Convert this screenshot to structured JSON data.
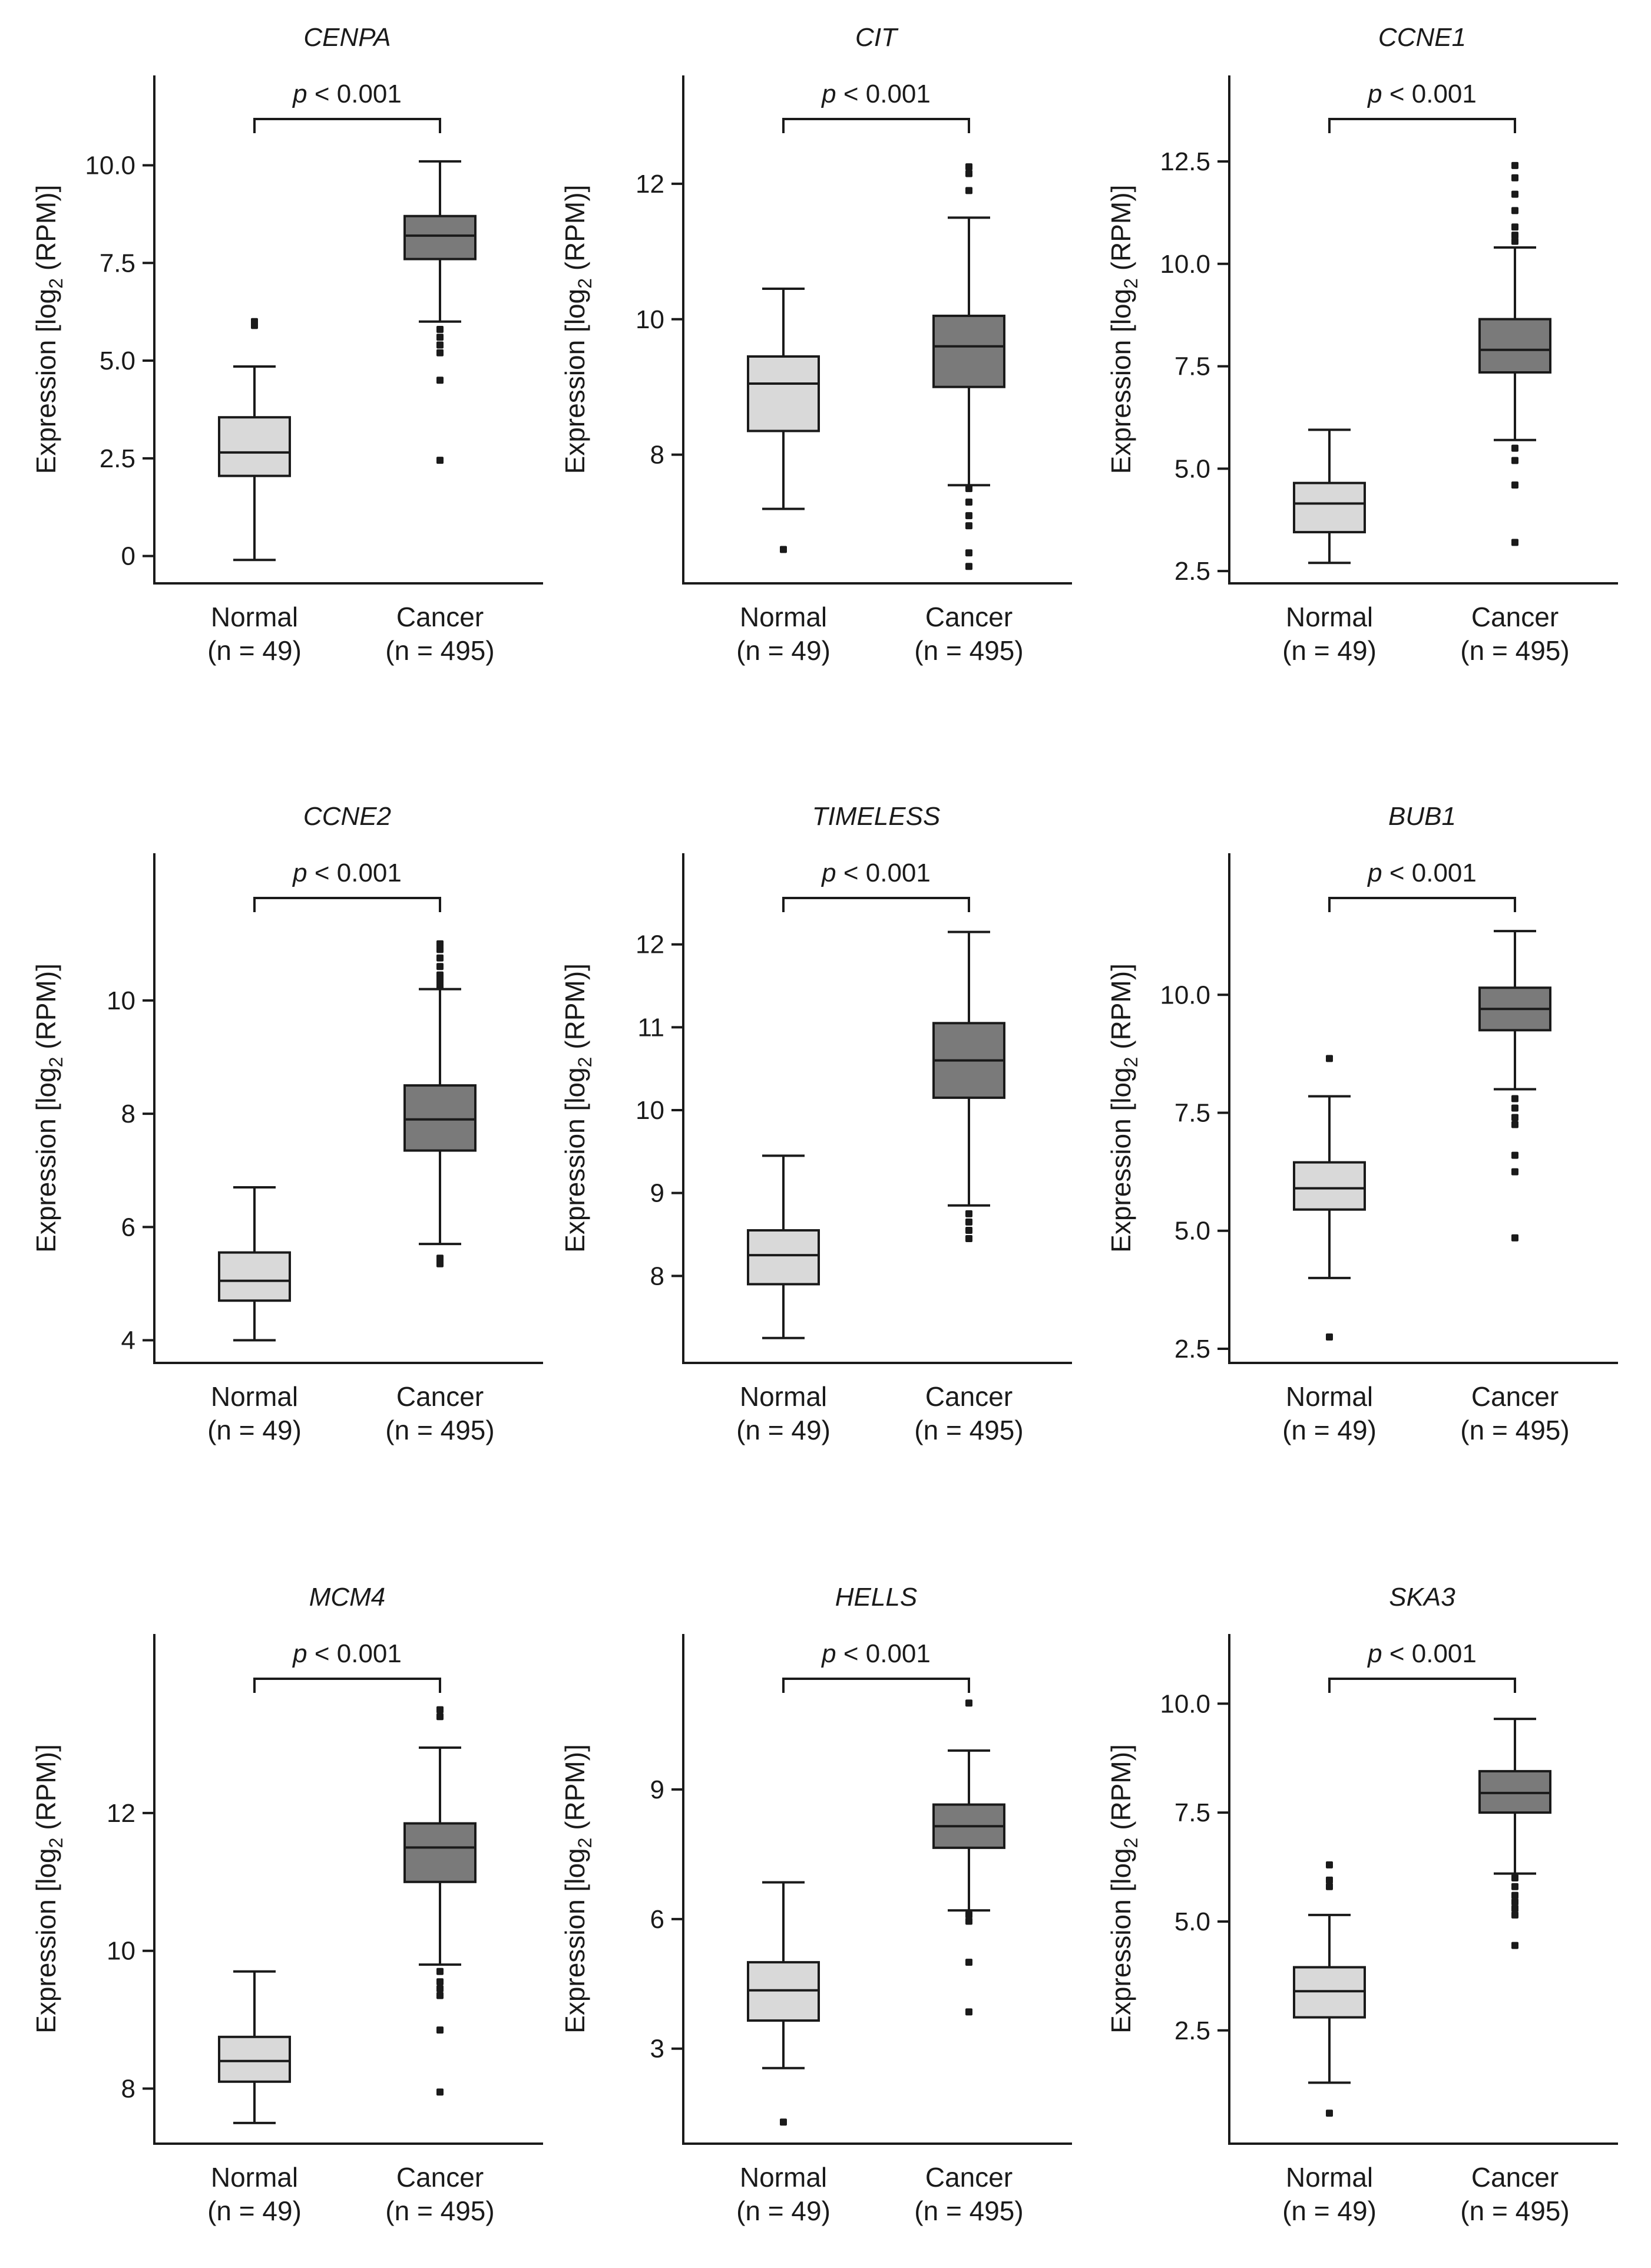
{
  "figure": {
    "y_axis_label": "Expression [log2 (RPM)]",
    "y_axis_label_parts": {
      "prefix": "Expression [log",
      "subscript": "2",
      "suffix": " (RPM)]"
    },
    "colors": {
      "normal_box": "#d9d9d9",
      "cancer_box": "#7a7a7a",
      "line": "#1a1a1a"
    }
  },
  "chart_data": [
    {
      "type": "box",
      "title": "CENPA",
      "pvalue": {
        "symbol": "p",
        "text": " < 0.001"
      },
      "ylabel": "Expression [log2 (RPM)]",
      "ylim": [
        -0.7,
        12.3
      ],
      "yticks": [
        0,
        2.5,
        5.0,
        7.5,
        10.0
      ],
      "ytick_labels": [
        "0",
        "2.5",
        "5.0",
        "7.5",
        "10.0"
      ],
      "groups": [
        {
          "name": "Normal",
          "n_label": "(n = 49)",
          "whisker_low": -0.1,
          "q1": 2.05,
          "median": 2.65,
          "q3": 3.55,
          "whisker_high": 4.85,
          "outliers": [
            5.9,
            6.0
          ]
        },
        {
          "name": "Cancer",
          "n_label": "(n = 495)",
          "whisker_low": 6.0,
          "q1": 7.6,
          "median": 8.2,
          "q3": 8.7,
          "whisker_high": 10.1,
          "outliers": [
            5.8,
            5.6,
            5.4,
            5.2,
            4.5,
            2.45
          ]
        }
      ]
    },
    {
      "type": "box",
      "title": "CIT",
      "pvalue": {
        "symbol": "p",
        "text": " < 0.001"
      },
      "ylabel": "Expression [log2 (RPM)]",
      "ylim": [
        6.1,
        13.6
      ],
      "yticks": [
        8,
        10,
        12
      ],
      "ytick_labels": [
        "8",
        "10",
        "12"
      ],
      "groups": [
        {
          "name": "Normal",
          "n_label": "(n = 49)",
          "whisker_low": 7.2,
          "q1": 8.35,
          "median": 9.05,
          "q3": 9.45,
          "whisker_high": 10.45,
          "outliers": [
            6.6
          ]
        },
        {
          "name": "Cancer",
          "n_label": "(n = 495)",
          "whisker_low": 7.55,
          "q1": 9.0,
          "median": 9.6,
          "q3": 10.05,
          "whisker_high": 11.5,
          "outliers": [
            12.25,
            12.15,
            11.9,
            7.5,
            7.3,
            7.1,
            6.95,
            6.55,
            6.35
          ]
        }
      ]
    },
    {
      "type": "box",
      "title": "CCNE1",
      "pvalue": {
        "symbol": "p",
        "text": " < 0.001"
      },
      "ylabel": "Expression [log2 (RPM)]",
      "ylim": [
        2.2,
        14.6
      ],
      "yticks": [
        2.5,
        5.0,
        7.5,
        10.0,
        12.5
      ],
      "ytick_labels": [
        "2.5",
        "5.0",
        "7.5",
        "10.0",
        "12.5"
      ],
      "groups": [
        {
          "name": "Normal",
          "n_label": "(n = 49)",
          "whisker_low": 2.7,
          "q1": 3.45,
          "median": 4.15,
          "q3": 4.65,
          "whisker_high": 5.95,
          "outliers": []
        },
        {
          "name": "Cancer",
          "n_label": "(n = 495)",
          "whisker_low": 5.7,
          "q1": 7.35,
          "median": 7.9,
          "q3": 8.65,
          "whisker_high": 10.4,
          "outliers": [
            12.4,
            12.1,
            11.7,
            11.3,
            10.9,
            10.7,
            10.55,
            5.5,
            5.2,
            4.6,
            3.2
          ]
        }
      ]
    },
    {
      "type": "box",
      "title": "CCNE2",
      "pvalue": {
        "symbol": "p",
        "text": " < 0.001"
      },
      "ylabel": "Expression [log2 (RPM)]",
      "ylim": [
        3.6,
        12.6
      ],
      "yticks": [
        4,
        6,
        8,
        10
      ],
      "ytick_labels": [
        "4",
        "6",
        "8",
        "10"
      ],
      "groups": [
        {
          "name": "Normal",
          "n_label": "(n = 49)",
          "whisker_low": 4.0,
          "q1": 4.7,
          "median": 5.05,
          "q3": 5.55,
          "whisker_high": 6.7,
          "outliers": []
        },
        {
          "name": "Cancer",
          "n_label": "(n = 495)",
          "whisker_low": 5.7,
          "q1": 7.35,
          "median": 7.9,
          "q3": 8.5,
          "whisker_high": 10.2,
          "outliers": [
            11.0,
            10.9,
            10.75,
            10.6,
            10.45,
            10.35,
            10.25,
            5.45,
            5.35
          ]
        }
      ]
    },
    {
      "type": "box",
      "title": "TIMELESS",
      "pvalue": {
        "symbol": "p",
        "text": " < 0.001"
      },
      "ylabel": "Expression [log2 (RPM)]",
      "ylim": [
        6.95,
        13.1
      ],
      "yticks": [
        8,
        9,
        10,
        11,
        12
      ],
      "ytick_labels": [
        "8",
        "9",
        "10",
        "11",
        "12"
      ],
      "groups": [
        {
          "name": "Normal",
          "n_label": "(n = 49)",
          "whisker_low": 7.25,
          "q1": 7.9,
          "median": 8.25,
          "q3": 8.55,
          "whisker_high": 9.45,
          "outliers": []
        },
        {
          "name": "Cancer",
          "n_label": "(n = 495)",
          "whisker_low": 8.85,
          "q1": 10.15,
          "median": 10.6,
          "q3": 11.05,
          "whisker_high": 12.15,
          "outliers": [
            8.75,
            8.65,
            8.55,
            8.45
          ]
        }
      ]
    },
    {
      "type": "box",
      "title": "BUB1",
      "pvalue": {
        "symbol": "p",
        "text": " < 0.001"
      },
      "ylabel": "Expression [log2 (RPM)]",
      "ylim": [
        2.2,
        13.0
      ],
      "yticks": [
        2.5,
        5.0,
        7.5,
        10.0
      ],
      "ytick_labels": [
        "2.5",
        "5.0",
        "7.5",
        "10.0"
      ],
      "groups": [
        {
          "name": "Normal",
          "n_label": "(n = 49)",
          "whisker_low": 4.0,
          "q1": 5.45,
          "median": 5.9,
          "q3": 6.45,
          "whisker_high": 7.85,
          "outliers": [
            8.65,
            2.75
          ]
        },
        {
          "name": "Cancer",
          "n_label": "(n = 495)",
          "whisker_low": 8.0,
          "q1": 9.25,
          "median": 9.7,
          "q3": 10.15,
          "whisker_high": 11.35,
          "outliers": [
            7.8,
            7.6,
            7.4,
            7.25,
            6.6,
            6.25,
            4.85
          ]
        }
      ]
    },
    {
      "type": "box",
      "title": "MCM4",
      "pvalue": {
        "symbol": "p",
        "text": " < 0.001"
      },
      "ylabel": "Expression [log2 (RPM)]",
      "ylim": [
        7.2,
        14.6
      ],
      "yticks": [
        8,
        10,
        12
      ],
      "ytick_labels": [
        "8",
        "10",
        "12"
      ],
      "groups": [
        {
          "name": "Normal",
          "n_label": "(n = 49)",
          "whisker_low": 7.5,
          "q1": 8.1,
          "median": 8.4,
          "q3": 8.75,
          "whisker_high": 9.7,
          "outliers": []
        },
        {
          "name": "Cancer",
          "n_label": "(n = 495)",
          "whisker_low": 9.8,
          "q1": 11.0,
          "median": 11.5,
          "q3": 11.85,
          "whisker_high": 12.95,
          "outliers": [
            13.5,
            13.4,
            9.7,
            9.55,
            9.45,
            9.35,
            8.85,
            7.95
          ]
        }
      ]
    },
    {
      "type": "box",
      "title": "HELLS",
      "pvalue": {
        "symbol": "p",
        "text": " < 0.001"
      },
      "ylabel": "Expression [log2 (RPM)]",
      "ylim": [
        0.8,
        12.6
      ],
      "yticks": [
        3,
        6,
        9
      ],
      "ytick_labels": [
        "3",
        "6",
        "9"
      ],
      "groups": [
        {
          "name": "Normal",
          "n_label": "(n = 49)",
          "whisker_low": 2.55,
          "q1": 3.65,
          "median": 4.35,
          "q3": 5.0,
          "whisker_high": 6.85,
          "outliers": [
            1.3
          ]
        },
        {
          "name": "Cancer",
          "n_label": "(n = 495)",
          "whisker_low": 6.2,
          "q1": 7.65,
          "median": 8.15,
          "q3": 8.65,
          "whisker_high": 9.9,
          "outliers": [
            11.0,
            6.1,
            5.95,
            5.0,
            3.85
          ]
        }
      ]
    },
    {
      "type": "box",
      "title": "SKA3",
      "pvalue": {
        "symbol": "p",
        "text": " < 0.001"
      },
      "ylabel": "Expression [log2 (RPM)]",
      "ylim": [
        -0.1,
        11.6
      ],
      "yticks": [
        2.5,
        5.0,
        7.5,
        10.0
      ],
      "ytick_labels": [
        "2.5",
        "5.0",
        "7.5",
        "10.0"
      ],
      "groups": [
        {
          "name": "Normal",
          "n_label": "(n = 49)",
          "whisker_low": 1.3,
          "q1": 2.8,
          "median": 3.4,
          "q3": 3.95,
          "whisker_high": 5.15,
          "outliers": [
            6.3,
            5.95,
            5.8,
            0.6
          ]
        },
        {
          "name": "Cancer",
          "n_label": "(n = 495)",
          "whisker_low": 6.1,
          "q1": 7.5,
          "median": 7.95,
          "q3": 8.45,
          "whisker_high": 9.65,
          "outliers": [
            6.0,
            5.8,
            5.6,
            5.45,
            5.3,
            5.15,
            4.45
          ]
        }
      ]
    }
  ]
}
